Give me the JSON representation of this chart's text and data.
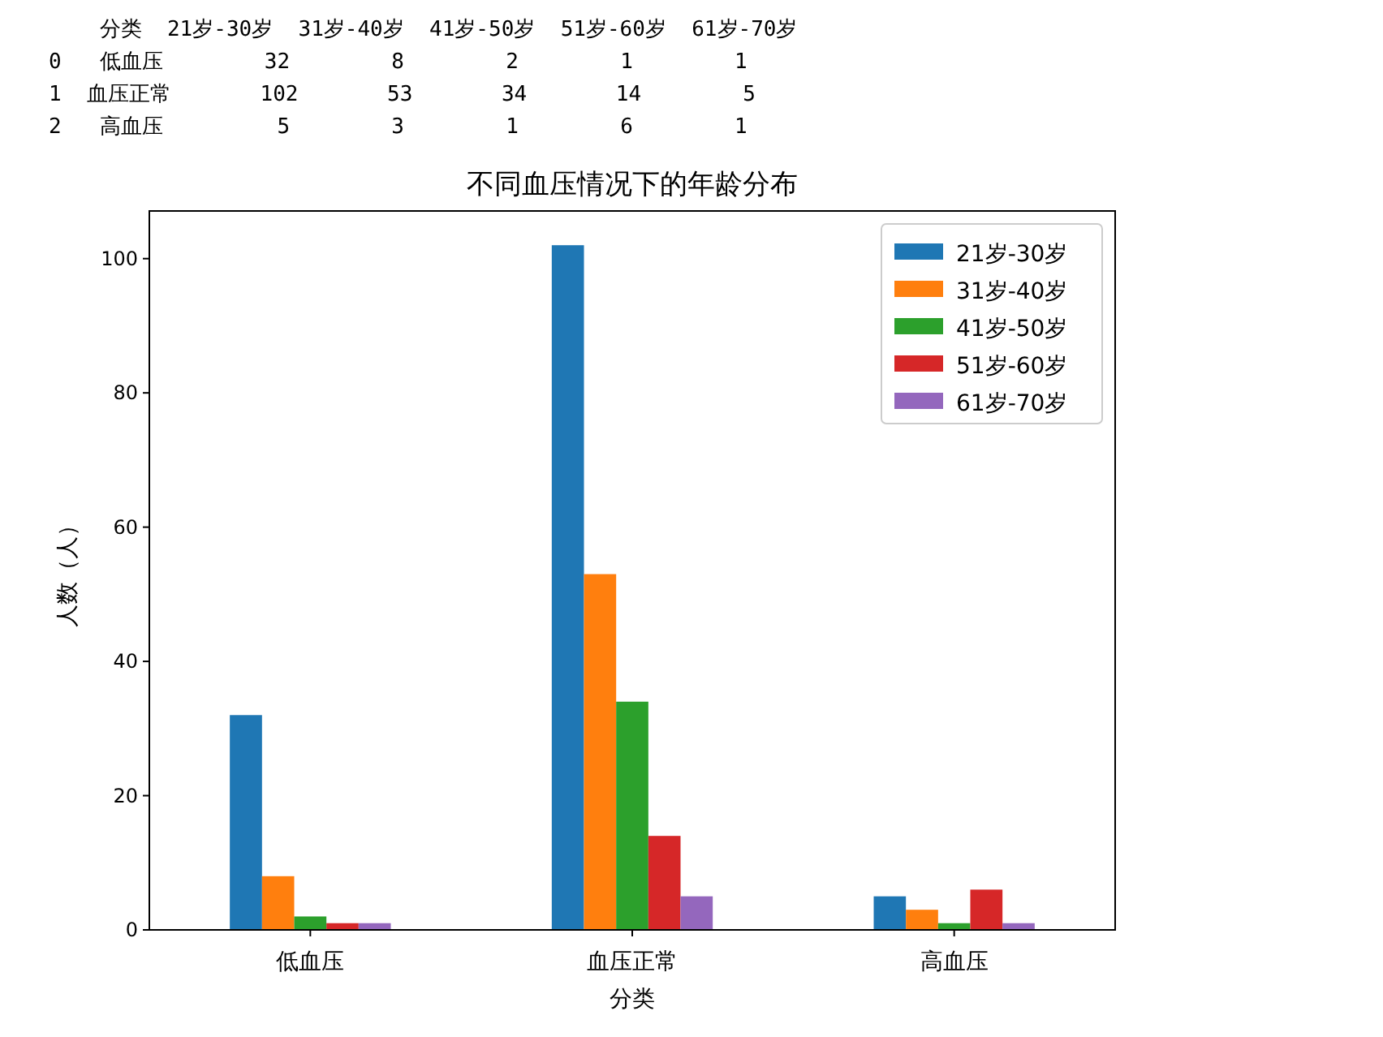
{
  "chart_data": [
    {
      "type": "other",
      "annotations": [
        "    分类  21岁-30岁  31岁-40岁  41岁-50岁  51岁-60岁  61岁-70岁",
        "0   低血压        32        8        2        1        1",
        "1  血压正常       102       53       34       14        5",
        "2   高血压         5        3        1        6        1"
      ]
    },
    {
      "type": "bar",
      "title": "不同血压情况下的年龄分布",
      "xlabel": "分类",
      "ylabel": "人数（人）",
      "categories": [
        "低血压",
        "血压正常",
        "高血压"
      ],
      "series": [
        {
          "name": "21岁-30岁",
          "color": "#1f77b4",
          "values": [
            32,
            102,
            5
          ]
        },
        {
          "name": "31岁-40岁",
          "color": "#ff7f0e",
          "values": [
            8,
            53,
            3
          ]
        },
        {
          "name": "41岁-50岁",
          "color": "#2ca02c",
          "values": [
            2,
            34,
            1
          ]
        },
        {
          "name": "51岁-60岁",
          "color": "#d62728",
          "values": [
            1,
            14,
            6
          ]
        },
        {
          "name": "61岁-70岁",
          "color": "#9467bd",
          "values": [
            1,
            5,
            1
          ]
        }
      ],
      "ylim": [
        0,
        107.1
      ],
      "yticks": [
        0,
        20,
        40,
        60,
        80,
        100
      ],
      "legend": "top right"
    }
  ]
}
